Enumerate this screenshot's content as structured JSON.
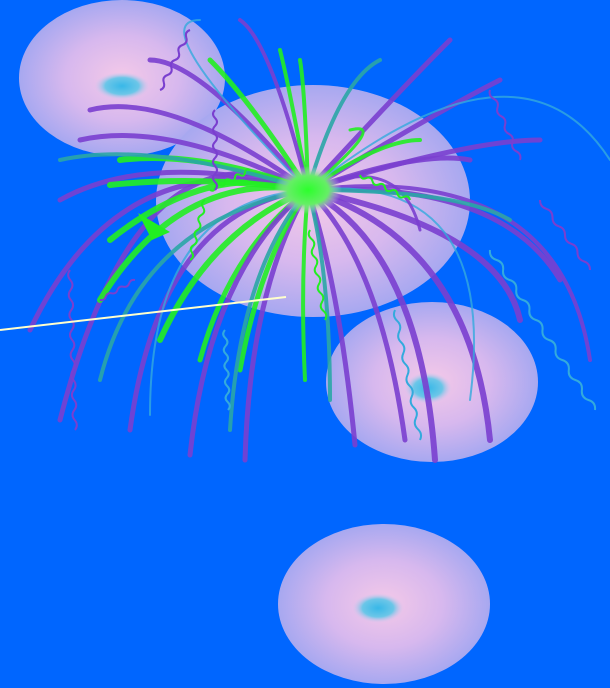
{
  "scene": {
    "colors": {
      "background": "#0066ff",
      "blob_center": "#f2c6e6",
      "blob_edge": "#a9a7ef",
      "core": "#36cfe0",
      "burst_core": "#33ff44",
      "strand_green": "#22ee22",
      "strand_purple": "#7a3fcf",
      "strand_teal": "#2aa6a6",
      "strand_cyan": "#33aadd",
      "pointer_line": "#ffffcc"
    },
    "elements": [
      "blob",
      "blob",
      "blob",
      "blob",
      "strand-burst",
      "pointer-line",
      "arrow-icon"
    ]
  }
}
